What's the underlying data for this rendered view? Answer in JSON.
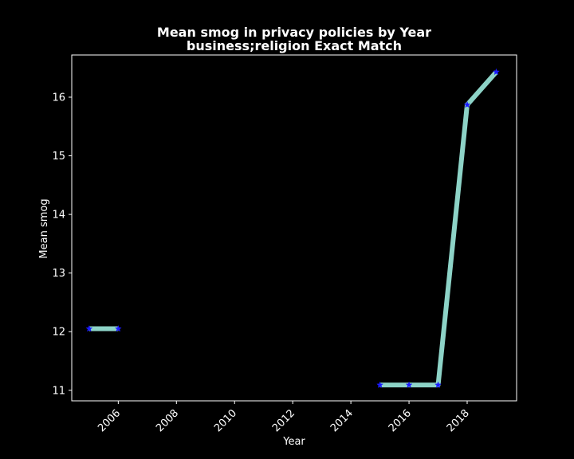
{
  "chart_data": {
    "type": "line",
    "title": "Mean smog in privacy policies by Year",
    "subtitle": "business;religion Exact Match",
    "xlabel": "Year",
    "ylabel": "Mean smog",
    "xlim": [
      2004.4,
      2019.7
    ],
    "ylim": [
      10.82,
      16.72
    ],
    "xticks": [
      2006,
      2008,
      2010,
      2012,
      2014,
      2016,
      2018
    ],
    "yticks": [
      11,
      12,
      13,
      14,
      15,
      16
    ],
    "grid": false,
    "background": "#000000",
    "axes_color": "#ffffff",
    "series": [
      {
        "x": [
          2005,
          2006,
          null,
          2015,
          2016,
          2017,
          2018,
          2019
        ],
        "y": [
          12.05,
          12.05,
          null,
          11.09,
          11.09,
          11.09,
          15.87,
          16.43
        ],
        "line_color": "#8dd3c7",
        "marker": "star",
        "marker_color": "#1a1aff"
      }
    ]
  }
}
